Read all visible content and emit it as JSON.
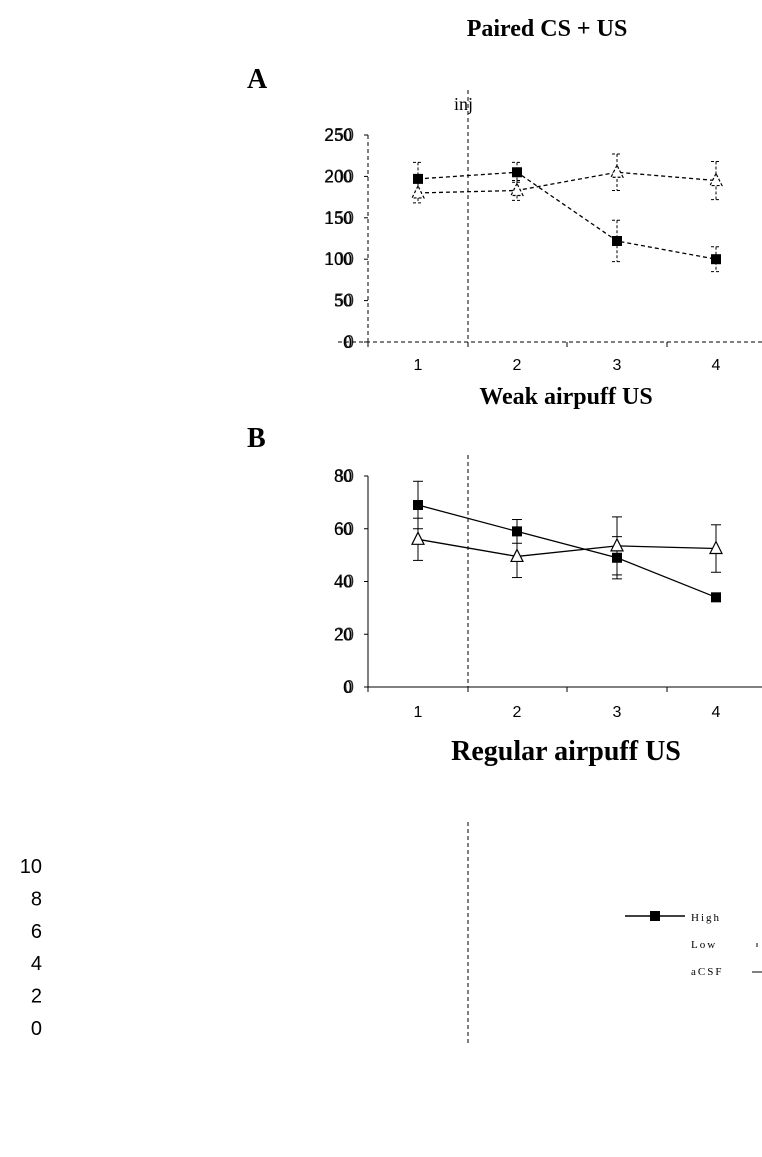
{
  "figure": {
    "title": "Paired CS + US",
    "inj_label": "inj",
    "legend": {
      "entries": [
        "High",
        "Low",
        "aCSF"
      ]
    }
  },
  "chart_data": [
    {
      "panel": "A",
      "type": "line",
      "title": "",
      "categories": [
        "1",
        "2",
        "3",
        "4"
      ],
      "y_ticks": [
        "0",
        "50",
        "100",
        "150",
        "200",
        "250"
      ],
      "ylim": [
        0,
        250
      ],
      "line_style": "dashed",
      "grid": false,
      "series": [
        {
          "marker": "square",
          "values": [
            197,
            205,
            122,
            100
          ],
          "errors": [
            20,
            12,
            25,
            15
          ]
        },
        {
          "marker": "triangle",
          "values": [
            180,
            183,
            205,
            195
          ],
          "errors": [
            12,
            12,
            22,
            23
          ]
        }
      ]
    },
    {
      "panel": "B",
      "type": "line",
      "title": "Weak airpuff US",
      "categories": [
        "1",
        "2",
        "3",
        "4"
      ],
      "y_ticks": [
        "0",
        "20",
        "40",
        "60",
        "80"
      ],
      "ylim": [
        0,
        80
      ],
      "line_style": "solid",
      "grid": false,
      "series": [
        {
          "marker": "square",
          "values": [
            69,
            59,
            49,
            34
          ],
          "errors": [
            9,
            4.5,
            8,
            1.5
          ]
        },
        {
          "marker": "triangle",
          "values": [
            56,
            49.5,
            53.5,
            52.5
          ],
          "errors": [
            8,
            8,
            11,
            9
          ]
        }
      ]
    },
    {
      "panel": "",
      "type": "line",
      "title": "Regular airpuff US",
      "y_ticks": [
        "0",
        "2",
        "4",
        "6",
        "8",
        "10"
      ],
      "ylim": [
        0,
        10
      ],
      "legend": "right"
    }
  ]
}
